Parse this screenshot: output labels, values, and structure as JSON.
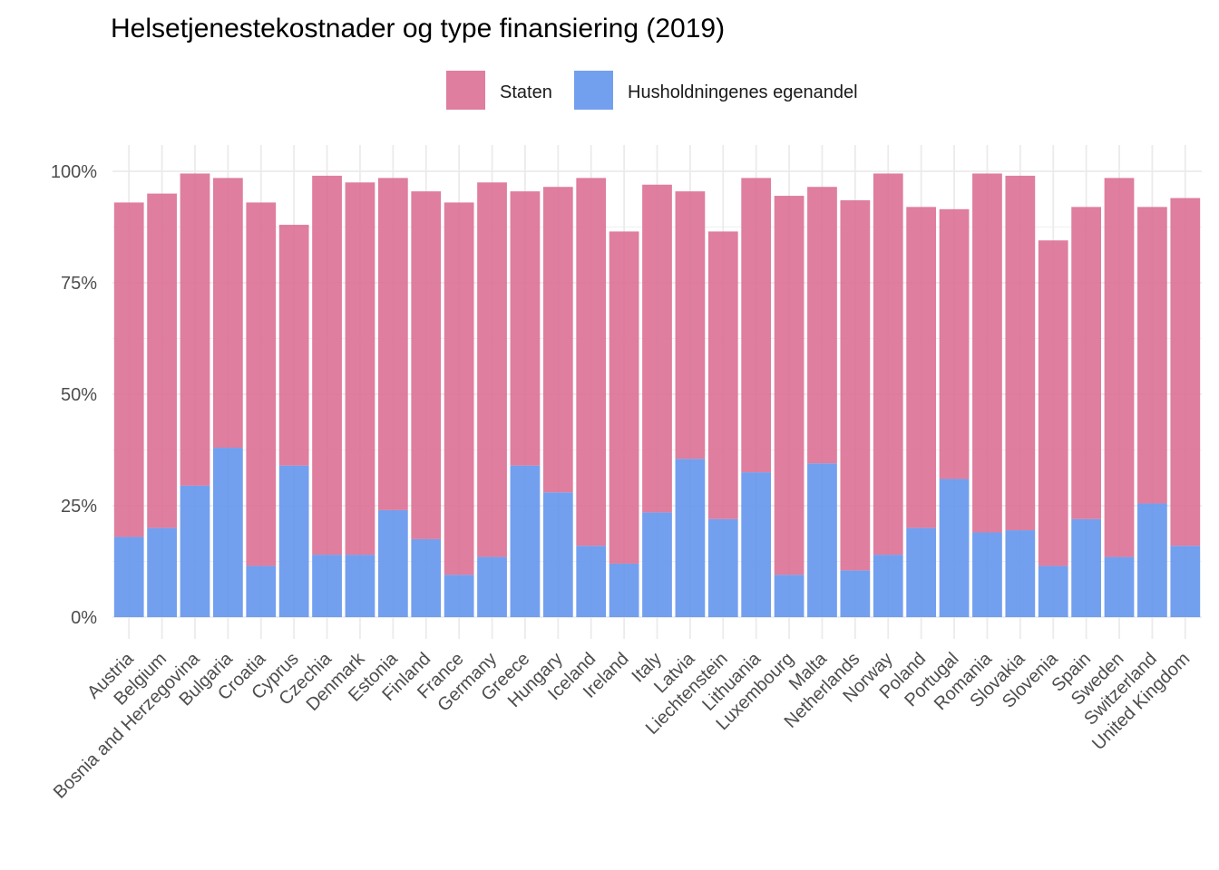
{
  "chart_data": {
    "type": "bar",
    "stacked": true,
    "title": "Helsetjenestekostnader og type finansiering (2019)",
    "xlabel": "",
    "ylabel": "",
    "ylim": [
      0,
      1.05
    ],
    "y_ticks": [
      0,
      0.25,
      0.5,
      0.75,
      1.0
    ],
    "y_tick_labels": [
      "0%",
      "25%",
      "50%",
      "75%",
      "100%"
    ],
    "legend_position": "top",
    "grid": true,
    "categories": [
      "Austria",
      "Belgium",
      "Bosnia and Herzegovina",
      "Bulgaria",
      "Croatia",
      "Cyprus",
      "Czechia",
      "Denmark",
      "Estonia",
      "Finland",
      "France",
      "Germany",
      "Greece",
      "Hungary",
      "Iceland",
      "Ireland",
      "Italy",
      "Latvia",
      "Liechtenstein",
      "Lithuania",
      "Luxembourg",
      "Malta",
      "Netherlands",
      "Norway",
      "Poland",
      "Portugal",
      "Romania",
      "Slovakia",
      "Slovenia",
      "Spain",
      "Sweden",
      "Switzerland",
      "United Kingdom"
    ],
    "series": [
      {
        "name": "Husholdningenes egenandel",
        "color": "#6495ED",
        "values": [
          0.18,
          0.2,
          0.295,
          0.38,
          0.115,
          0.34,
          0.14,
          0.14,
          0.24,
          0.175,
          0.095,
          0.135,
          0.34,
          0.28,
          0.16,
          0.12,
          0.235,
          0.355,
          0.22,
          0.325,
          0.095,
          0.345,
          0.105,
          0.14,
          0.2,
          0.31,
          0.19,
          0.195,
          0.115,
          0.22,
          0.135,
          0.255,
          0.16
        ]
      },
      {
        "name": "Staten",
        "color": "#DB7093",
        "values": [
          0.75,
          0.75,
          0.7,
          0.605,
          0.815,
          0.54,
          0.85,
          0.835,
          0.745,
          0.78,
          0.835,
          0.84,
          0.615,
          0.685,
          0.825,
          0.745,
          0.735,
          0.6,
          0.645,
          0.66,
          0.85,
          0.62,
          0.83,
          0.855,
          0.72,
          0.605,
          0.805,
          0.795,
          0.73,
          0.7,
          0.85,
          0.665,
          0.78
        ]
      }
    ]
  }
}
